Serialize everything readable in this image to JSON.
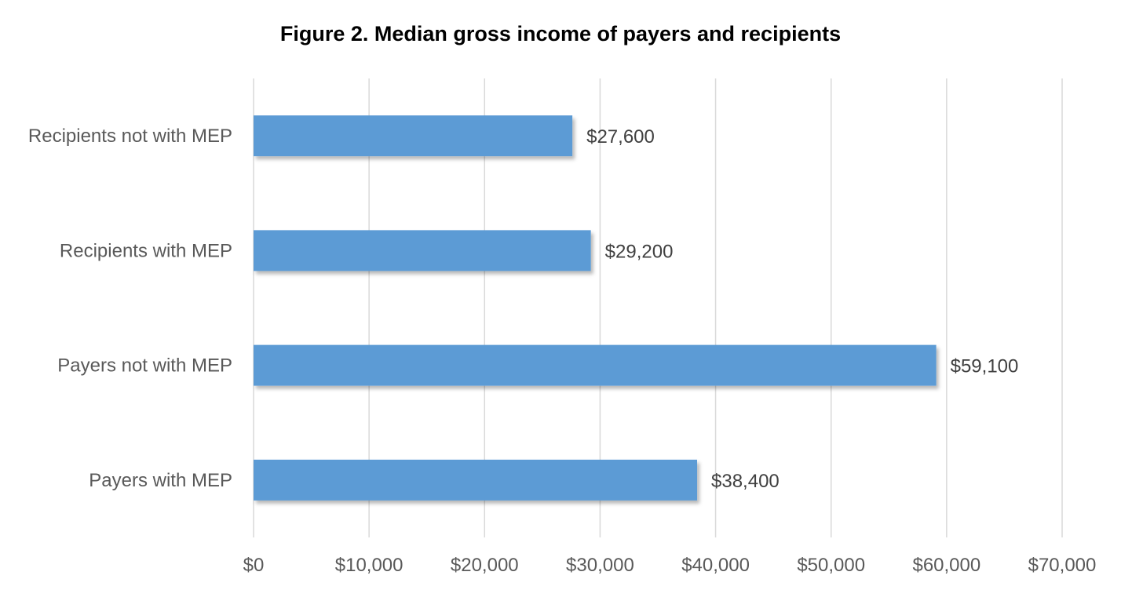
{
  "chart_data": {
    "type": "bar",
    "orientation": "horizontal",
    "title": "Figure 2. Median gross income of payers and recipients",
    "categories": [
      "Recipients not with MEP",
      "Recipients with MEP",
      "Payers not with MEP",
      "Payers with MEP"
    ],
    "values": [
      27600,
      29200,
      59100,
      38400
    ],
    "data_labels": [
      "$27,600",
      "$29,200",
      "$59,100",
      "$38,400"
    ],
    "xlim": [
      0,
      70000
    ],
    "x_ticks": [
      0,
      10000,
      20000,
      30000,
      40000,
      50000,
      60000,
      70000
    ],
    "x_tick_labels": [
      "$0",
      "$10,000",
      "$20,000",
      "$30,000",
      "$40,000",
      "$50,000",
      "$60,000",
      "$70,000"
    ],
    "grid": true,
    "legend": "none",
    "bar_color": "#5b9bd5"
  }
}
